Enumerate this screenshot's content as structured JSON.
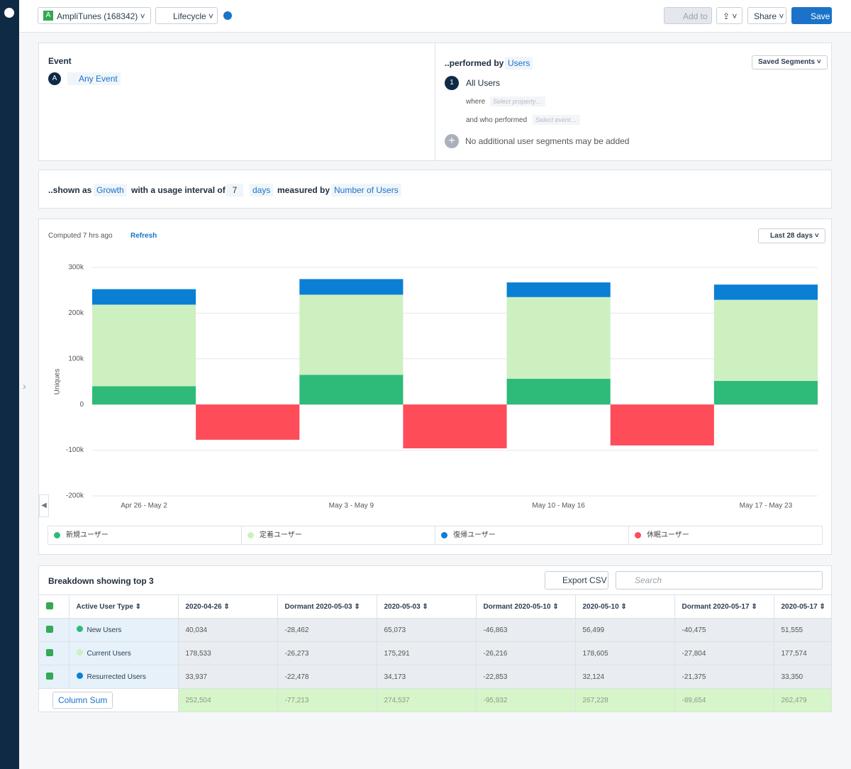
{
  "toolbar": {
    "project_badge": "A",
    "project": "AmpliTunes (168342)",
    "chart_type": "Lifecycle",
    "add_to": "Add to",
    "share": "Share",
    "save": "Save"
  },
  "event_panel": {
    "label": "Event",
    "badge": "A",
    "event": "Any Event"
  },
  "segment_panel": {
    "label": "..performed by",
    "who": "Users",
    "saved": "Saved Segments",
    "segment_number": "1",
    "segment": "All Users",
    "where": "where",
    "where_placeholder": "Select property…",
    "and_who": "and who performed",
    "event_placeholder": "Select event…",
    "note": "No additional user segments may be added"
  },
  "settings": {
    "shown_as_label": "..shown as",
    "shown_as": "Growth",
    "interval_label": "with a usage interval of",
    "interval": "7",
    "unit": "days",
    "measured_label": "measured by",
    "measured": "Number of Users"
  },
  "chart_panel": {
    "computed": "Computed 7 hrs ago",
    "refresh": "Refresh",
    "range": "Last 28 days"
  },
  "chart_data": {
    "type": "bar",
    "stacked": true,
    "ylabel": "Uniques",
    "categories": [
      "Apr 26 - May 2",
      null,
      "May 3 - May 9",
      null,
      "May 10 - May 16",
      null,
      "May 17 - May 23"
    ],
    "series": [
      {
        "name": "新規ユーザー",
        "color": "#2ebb7a",
        "values": [
          40034,
          null,
          65073,
          null,
          56499,
          null,
          51555
        ]
      },
      {
        "name": "定着ユーザー",
        "color": "#cdf0c0",
        "values": [
          178533,
          null,
          175291,
          null,
          178605,
          null,
          177574
        ]
      },
      {
        "name": "復帰ユーザー",
        "color": "#0b7fd4",
        "values": [
          33937,
          null,
          34173,
          null,
          32124,
          null,
          33350
        ]
      },
      {
        "name": "休眠ユーザー",
        "color": "#ff4c59",
        "values": [
          null,
          -77213,
          null,
          -95932,
          null,
          -89654,
          null
        ]
      }
    ],
    "ylim": [
      -200000,
      300000
    ],
    "yticks": [
      {
        "value": -200000,
        "label": "-200k"
      },
      {
        "value": -100000,
        "label": "-100k"
      },
      0,
      {
        "value": 100000,
        "label": "100k"
      },
      {
        "value": 200000,
        "label": "200k"
      },
      {
        "value": 300000,
        "label": "300k"
      }
    ],
    "grid": true
  },
  "table": {
    "title": "Breakdown showing top 3",
    "export": "Export CSV",
    "search_placeholder": "Search",
    "columns": [
      "Active User Type",
      "2020-04-26",
      "Dormant 2020-05-03",
      "2020-05-03",
      "Dormant 2020-05-10",
      "2020-05-10",
      "Dormant 2020-05-17",
      "2020-05-17"
    ],
    "rows": [
      {
        "name": "New Users",
        "values": [
          "40,034",
          "-28,462",
          "65,073",
          "-46,863",
          "56,499",
          "-40,475",
          "51,555"
        ]
      },
      {
        "name": "Current Users",
        "values": [
          "178,533",
          "-26,273",
          "175,291",
          "-26,216",
          "178,605",
          "-27,804",
          "177,574"
        ]
      },
      {
        "name": "Resurrected Users",
        "values": [
          "33,937",
          "-22,478",
          "34,173",
          "-22,853",
          "32,124",
          "-21,375",
          "33,350"
        ]
      }
    ],
    "sum_label": "Column Sum",
    "sums": [
      "252,504",
      "-77,213",
      "274,537",
      "-95,932",
      "267,228",
      "-89,654",
      "262,479"
    ]
  }
}
